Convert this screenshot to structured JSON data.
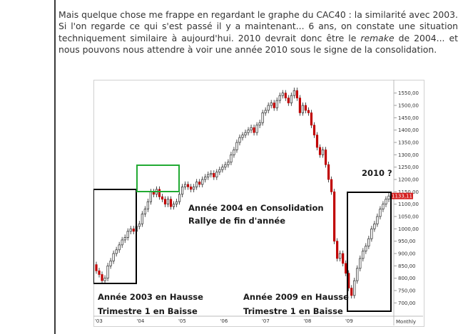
{
  "article": {
    "p1": "Mais quelque chose me frappe en regardant le graphe du CAC40 : la similarité avec 2003. Si l'on regarde ce qui s'est passé il y a maintenant... 6 ans, on constate une situation techniquement similaire à aujourd'hui. 2010 devrait donc être le ",
    "emph": "remake",
    "p2": " de 2004... et nous pouvons nous attendre à voir une année 2010 sous le signe de la consolidation."
  },
  "chart_data": {
    "type": "candlestick",
    "periodicity_label": "Monthly",
    "y_ticks": [
      "1550,00",
      "1500,00",
      "1450,00",
      "1400,00",
      "1350,00",
      "1300,00",
      "1250,00",
      "1200,00",
      "1150,00",
      "1100,00",
      "1050,00",
      "1000,00",
      "950,00",
      "900,00",
      "850,00",
      "800,00",
      "750,00",
      "700,00"
    ],
    "y_tick_values": [
      1550,
      1500,
      1450,
      1400,
      1350,
      1300,
      1250,
      1200,
      1150,
      1100,
      1050,
      1000,
      950,
      900,
      850,
      800,
      750,
      700
    ],
    "ylim": [
      675,
      1575
    ],
    "x_ticks": [
      "'03",
      "'04",
      "'05",
      "'06",
      "'07",
      "'08",
      "'09"
    ],
    "last_price_label": "1133,11",
    "last_price": 1133.11,
    "annotations": {
      "label_2010": "2010 ?",
      "consolidation_1": "Année 2004 en Consolidation",
      "consolidation_2": "Rallye de fin d'année",
      "hausse_2003_1": "Année 2003 en Hausse",
      "hausse_2003_2": "Trimestre 1 en Baisse",
      "hausse_2009_1": "Année 2009 en Hausse",
      "hausse_2009_2": "Trimestre 1 en Baisse"
    },
    "colors": {
      "up": "#ffffff",
      "down": "#c00000",
      "box_black": "#000000",
      "box_green": "#22aa33",
      "price_tag": "#d42020"
    },
    "closes": [
      830,
      815,
      790,
      800,
      850,
      870,
      900,
      915,
      935,
      955,
      965,
      990,
      1000,
      990,
      1010,
      1020,
      1060,
      1080,
      1110,
      1150,
      1140,
      1160,
      1130,
      1120,
      1100,
      1120,
      1090,
      1100,
      1110,
      1140,
      1170,
      1180,
      1170,
      1160,
      1170,
      1190,
      1180,
      1200,
      1210,
      1220,
      1225,
      1210,
      1230,
      1240,
      1250,
      1260,
      1270,
      1300,
      1320,
      1350,
      1370,
      1380,
      1390,
      1400,
      1410,
      1390,
      1420,
      1430,
      1470,
      1480,
      1500,
      1510,
      1490,
      1520,
      1540,
      1550,
      1530,
      1510,
      1540,
      1560,
      1530,
      1470,
      1500,
      1480,
      1470,
      1420,
      1380,
      1330,
      1300,
      1320,
      1260,
      1200,
      1150,
      950,
      880,
      900,
      860,
      820,
      760,
      730,
      790,
      840,
      880,
      910,
      930,
      960,
      1000,
      1020,
      1050,
      1080,
      1100,
      1120,
      1133.11
    ]
  }
}
